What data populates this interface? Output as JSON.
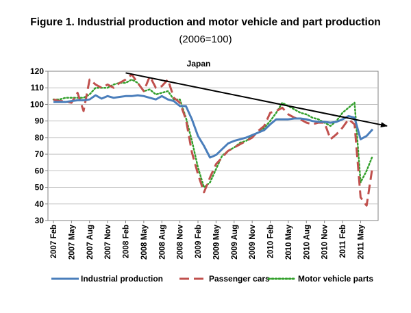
{
  "figure": {
    "title": "Figure 1. Industrial production and motor vehicle and part production",
    "subtitle": "(2006=100)"
  },
  "chart_data": {
    "type": "line",
    "inner_title": "Japan",
    "ylim": [
      30,
      120
    ],
    "yticks": [
      30,
      40,
      50,
      60,
      70,
      80,
      90,
      100,
      110,
      120
    ],
    "x_tick_labels": [
      "2007 Feb",
      "2007 May",
      "2007 Aug",
      "2007 Nov",
      "2008 Feb",
      "2008 May",
      "2008 Aug",
      "2008 Nov",
      "2009 Feb",
      "2009 May",
      "2009 Aug",
      "2009 Nov",
      "2010 Feb",
      "2010 May",
      "2010 Aug",
      "2010 Nov",
      "2011 Feb",
      "2011 May"
    ],
    "x_start": "2007 Feb",
    "x_end": "2011 May",
    "grid": "horizontal",
    "legend_position": "bottom",
    "series": [
      {
        "name": "Industrial production",
        "style": "solid",
        "color": "#4a7ebb",
        "values": [
          101.5,
          101.5,
          101.5,
          102,
          102.5,
          102.5,
          103,
          105.5,
          103.5,
          105,
          104,
          104.5,
          105,
          105,
          105.5,
          105,
          104,
          103,
          105,
          103,
          102,
          99,
          99,
          91,
          81,
          75,
          68,
          69.5,
          73,
          76.5,
          78,
          79,
          80,
          81.5,
          83,
          84.5,
          88,
          91,
          91,
          91,
          91.5,
          91.5,
          91,
          90,
          89.5,
          89.5,
          89,
          89.5,
          91,
          93,
          92,
          79,
          81,
          85
        ]
      },
      {
        "name": "Passenger cars",
        "style": "dashed",
        "color": "#c0504d",
        "values": [
          103,
          102,
          102,
          101,
          107,
          96,
          115,
          112,
          110,
          112,
          110,
          113,
          115,
          118,
          113,
          108,
          117,
          110,
          111,
          115,
          104,
          101,
          91,
          71,
          58,
          47,
          56,
          64,
          68,
          72,
          74,
          76,
          78,
          80,
          84,
          87,
          95,
          96,
          98,
          94,
          92,
          91,
          89,
          88,
          89,
          89,
          79,
          82,
          86,
          91,
          88,
          44,
          39,
          63
        ]
      },
      {
        "name": "Motor vehicle parts",
        "style": "dotted",
        "color": "#33a02c",
        "values": [
          103,
          103,
          104,
          104,
          104,
          104,
          106,
          110,
          110,
          110,
          112,
          113,
          113,
          115,
          113,
          108,
          109,
          106,
          107,
          108,
          103,
          103,
          92,
          78,
          62,
          50,
          53,
          61,
          69,
          72,
          74,
          77,
          78,
          81,
          83,
          86,
          90,
          95,
          101,
          99,
          97,
          95,
          94,
          92,
          91,
          89,
          87,
          90,
          95,
          98,
          101,
          53,
          60,
          69
        ]
      }
    ],
    "trend_arrow": {
      "from": {
        "x": "2008 Feb",
        "y": 119
      },
      "to": {
        "x": "2011 May",
        "y": 87
      }
    }
  }
}
